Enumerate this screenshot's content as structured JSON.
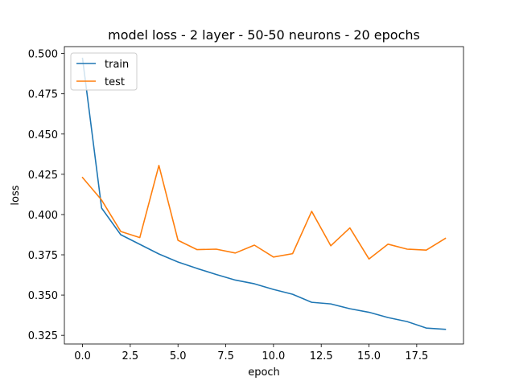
{
  "chart_data": {
    "type": "line",
    "title": "model loss - 2 layer - 50-50 neurons - 20 epochs",
    "xlabel": "epoch",
    "ylabel": "loss",
    "xlim": [
      -0.95,
      19.95
    ],
    "ylim": [
      0.3196,
      0.5043
    ],
    "x_ticks": [
      0.0,
      2.5,
      5.0,
      7.5,
      10.0,
      12.5,
      15.0,
      17.5
    ],
    "x_tick_labels": [
      "0.0",
      "2.5",
      "5.0",
      "7.5",
      "10.0",
      "12.5",
      "15.0",
      "17.5"
    ],
    "y_ticks": [
      0.325,
      0.35,
      0.375,
      0.4,
      0.425,
      0.45,
      0.475,
      0.5
    ],
    "y_tick_labels": [
      "0.325",
      "0.350",
      "0.375",
      "0.400",
      "0.425",
      "0.450",
      "0.475",
      "0.500"
    ],
    "grid": false,
    "legend_position": "upper-left",
    "x": [
      0,
      1,
      2,
      3,
      4,
      5,
      6,
      7,
      8,
      9,
      10,
      11,
      12,
      13,
      14,
      15,
      16,
      17,
      18,
      19
    ],
    "series": [
      {
        "name": "train",
        "color": "#1f77b4",
        "values": [
          0.497,
          0.404,
          0.3875,
          0.3815,
          0.3755,
          0.3705,
          0.3665,
          0.3628,
          0.3593,
          0.357,
          0.3535,
          0.3505,
          0.3455,
          0.3445,
          0.3415,
          0.3393,
          0.336,
          0.3335,
          0.3295,
          0.3287
        ]
      },
      {
        "name": "test",
        "color": "#ff7f0e",
        "values": [
          0.423,
          0.409,
          0.3895,
          0.3857,
          0.4305,
          0.384,
          0.3782,
          0.3785,
          0.3761,
          0.381,
          0.3736,
          0.3757,
          0.402,
          0.3806,
          0.3917,
          0.3724,
          0.3816,
          0.3785,
          0.3779,
          0.3852
        ]
      }
    ]
  }
}
